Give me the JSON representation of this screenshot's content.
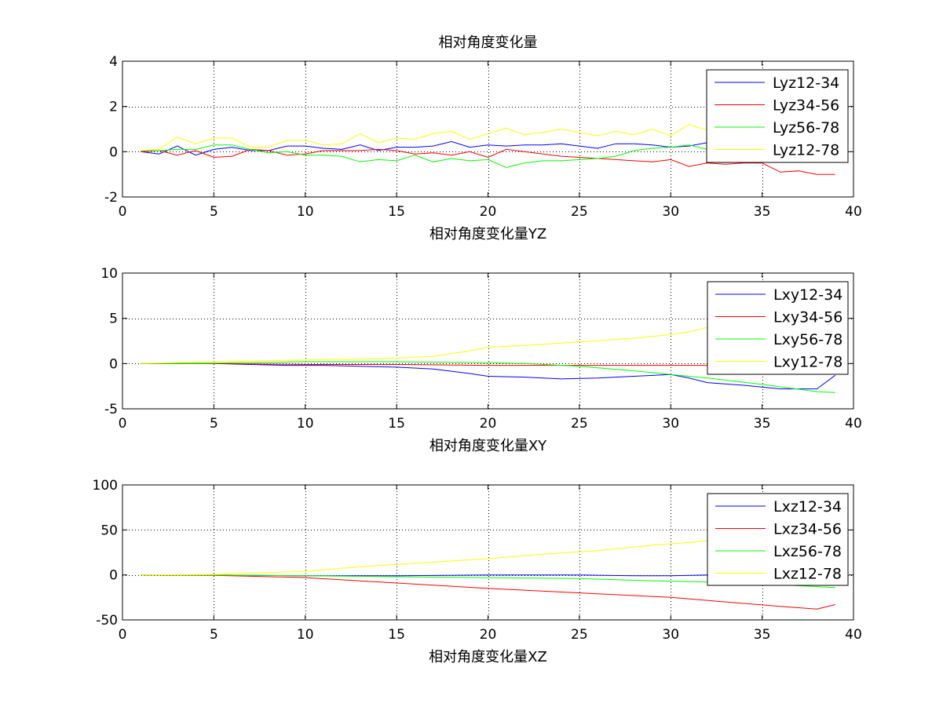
{
  "window": {
    "background": "#ffffff"
  },
  "chart_data": [
    {
      "type": "line",
      "title": "相对角度变化量",
      "xlabel": "相对角度变化量YZ",
      "ylabel": "",
      "xlim": [
        0,
        40
      ],
      "ylim": [
        -2,
        4
      ],
      "xticks": [
        0,
        5,
        10,
        15,
        20,
        25,
        30,
        35,
        40
      ],
      "yticks": [
        -2,
        0,
        2,
        4
      ],
      "grid": true,
      "legend": "top-right",
      "series": [
        {
          "name": "Lyz12-34",
          "color": "#0000ff",
          "x": [
            1,
            2,
            3,
            4,
            5,
            6,
            7,
            8,
            9,
            10,
            11,
            12,
            13,
            14,
            15,
            16,
            17,
            18,
            19,
            20,
            21,
            22,
            23,
            24,
            25,
            26,
            27,
            28,
            29,
            30,
            31,
            32,
            33,
            34
          ],
          "y": [
            0,
            -0.1,
            0.25,
            -0.15,
            0.1,
            0.2,
            0.05,
            0.05,
            0.25,
            0.25,
            0.15,
            0.1,
            0.3,
            0.05,
            0.2,
            0.2,
            0.25,
            0.45,
            0.2,
            0.3,
            0.25,
            0.3,
            0.3,
            0.35,
            0.25,
            0.15,
            0.35,
            0.35,
            0.3,
            0.2,
            0.25,
            0.4,
            0.4,
            0.45
          ]
        },
        {
          "name": "Lyz34-56",
          "color": "#ff0000",
          "x": [
            1,
            2,
            3,
            4,
            5,
            6,
            7,
            8,
            9,
            10,
            11,
            12,
            13,
            14,
            15,
            16,
            17,
            18,
            19,
            20,
            21,
            22,
            23,
            24,
            25,
            26,
            27,
            28,
            29,
            30,
            31,
            32,
            33,
            34,
            35,
            36,
            37,
            38,
            39
          ],
          "y": [
            0,
            0.05,
            -0.15,
            0.05,
            -0.25,
            -0.2,
            0.1,
            0.05,
            -0.15,
            -0.1,
            0.05,
            0.05,
            0.05,
            0.1,
            0.05,
            -0.1,
            -0.05,
            -0.15,
            0,
            -0.25,
            0.1,
            0,
            -0.1,
            -0.2,
            -0.25,
            -0.3,
            -0.35,
            -0.4,
            -0.45,
            -0.35,
            -0.65,
            -0.5,
            -0.55,
            -0.5,
            -0.5,
            -0.9,
            -0.85,
            -1.0,
            -1.0
          ]
        },
        {
          "name": "Lyz56-78",
          "color": "#00ff00",
          "x": [
            1,
            2,
            3,
            4,
            5,
            6,
            7,
            8,
            9,
            10,
            11,
            12,
            13,
            14,
            15,
            16,
            17,
            18,
            19,
            20,
            21,
            22,
            23,
            24,
            25,
            26,
            27,
            28,
            29,
            30,
            31,
            32
          ],
          "y": [
            0.05,
            0.05,
            0.1,
            0.1,
            0.3,
            0.3,
            0.1,
            -0.05,
            0,
            -0.15,
            -0.15,
            -0.2,
            -0.45,
            -0.35,
            -0.4,
            -0.15,
            -0.45,
            -0.3,
            -0.4,
            -0.35,
            -0.7,
            -0.5,
            -0.4,
            -0.4,
            -0.35,
            -0.3,
            -0.2,
            0.05,
            0.15,
            0.2,
            0.3,
            0.1
          ]
        },
        {
          "name": "Lyz12-78",
          "color": "#ffff00",
          "x": [
            1,
            2,
            3,
            4,
            5,
            6,
            7,
            8,
            9,
            10,
            11,
            12,
            13,
            14,
            15,
            16,
            17,
            18,
            19,
            20,
            21,
            22,
            23,
            24,
            25,
            26,
            27,
            28,
            29,
            30,
            31,
            32
          ],
          "y": [
            0.05,
            0.1,
            0.65,
            0.35,
            0.6,
            0.6,
            0.2,
            0.2,
            0.5,
            0.5,
            0.3,
            0.35,
            0.8,
            0.4,
            0.6,
            0.55,
            0.8,
            0.9,
            0.55,
            0.8,
            1.05,
            0.75,
            0.85,
            1.0,
            0.85,
            0.7,
            0.9,
            0.75,
            1.0,
            0.7,
            1.2,
            0.95
          ]
        }
      ]
    },
    {
      "type": "line",
      "title": "",
      "xlabel": "相对角度变化量XY",
      "ylabel": "",
      "xlim": [
        0,
        40
      ],
      "ylim": [
        -5,
        10
      ],
      "xticks": [
        0,
        5,
        10,
        15,
        20,
        25,
        30,
        35,
        40
      ],
      "yticks": [
        -5,
        0,
        5,
        10
      ],
      "grid": true,
      "legend": "top-right",
      "series": [
        {
          "name": "Lxy12-34",
          "color": "#0000ff",
          "x": [
            1,
            3,
            5,
            7,
            9,
            11,
            13,
            15,
            17,
            19,
            20,
            22,
            24,
            26,
            28,
            30,
            31,
            32,
            34,
            36,
            38,
            39
          ],
          "y": [
            0,
            0,
            0,
            -0.1,
            -0.2,
            -0.2,
            -0.3,
            -0.4,
            -0.6,
            -1.1,
            -1.4,
            -1.5,
            -1.7,
            -1.6,
            -1.4,
            -1.2,
            -1.6,
            -2.1,
            -2.4,
            -2.8,
            -2.8,
            -1.3
          ]
        },
        {
          "name": "Lxy34-56",
          "color": "#ff0000",
          "x": [
            1,
            5,
            10,
            15,
            20,
            25,
            30,
            32
          ],
          "y": [
            0,
            0,
            -0.1,
            -0.1,
            -0.2,
            -0.2,
            -0.2,
            -0.2
          ]
        },
        {
          "name": "Lxy56-78",
          "color": "#00ff00",
          "x": [
            1,
            5,
            10,
            15,
            20,
            22,
            25,
            28,
            30,
            32,
            35,
            38,
            39
          ],
          "y": [
            0,
            0.05,
            0.2,
            0.2,
            0.1,
            0,
            -0.3,
            -0.8,
            -1.2,
            -1.6,
            -2.3,
            -3.1,
            -3.2
          ]
        },
        {
          "name": "Lxy12-78",
          "color": "#ffff00",
          "x": [
            1,
            5,
            10,
            15,
            17,
            19,
            20,
            22,
            25,
            28,
            30,
            31,
            32
          ],
          "y": [
            0,
            0.2,
            0.4,
            0.6,
            0.8,
            1.4,
            1.8,
            2.0,
            2.4,
            2.8,
            3.2,
            3.5,
            4.0
          ]
        }
      ]
    },
    {
      "type": "line",
      "title": "",
      "xlabel": "相对角度变化量XZ",
      "ylabel": "",
      "xlim": [
        0,
        40
      ],
      "ylim": [
        -50,
        100
      ],
      "xticks": [
        0,
        5,
        10,
        15,
        20,
        25,
        30,
        35,
        40
      ],
      "yticks": [
        -50,
        0,
        50,
        100
      ],
      "grid": true,
      "legend": "top-right",
      "series": [
        {
          "name": "Lxz12-34",
          "color": "#0000ff",
          "x": [
            1,
            5,
            10,
            15,
            20,
            25,
            28,
            30,
            32
          ],
          "y": [
            0,
            0,
            -1,
            -1,
            0,
            0,
            -1,
            -1,
            0
          ]
        },
        {
          "name": "Lxz34-56",
          "color": "#ff0000",
          "x": [
            1,
            5,
            10,
            15,
            20,
            25,
            28,
            30,
            33,
            36,
            38,
            39
          ],
          "y": [
            0,
            -0.5,
            -3,
            -9,
            -15,
            -20,
            -23,
            -25,
            -30,
            -35,
            -38,
            -33
          ]
        },
        {
          "name": "Lxz56-78",
          "color": "#00ff00",
          "x": [
            1,
            5,
            10,
            15,
            20,
            25,
            28,
            30,
            32,
            35,
            38,
            39
          ],
          "y": [
            0,
            0,
            -1,
            -2,
            -3,
            -4,
            -6,
            -7,
            -8,
            -10,
            -13,
            -14
          ]
        },
        {
          "name": "Lxz12-78",
          "color": "#ffff00",
          "x": [
            1,
            5,
            10,
            13,
            16,
            20,
            23,
            26,
            29,
            31,
            32
          ],
          "y": [
            0,
            0.5,
            4,
            9,
            13,
            18,
            23,
            27,
            33,
            36,
            38
          ]
        }
      ]
    }
  ]
}
